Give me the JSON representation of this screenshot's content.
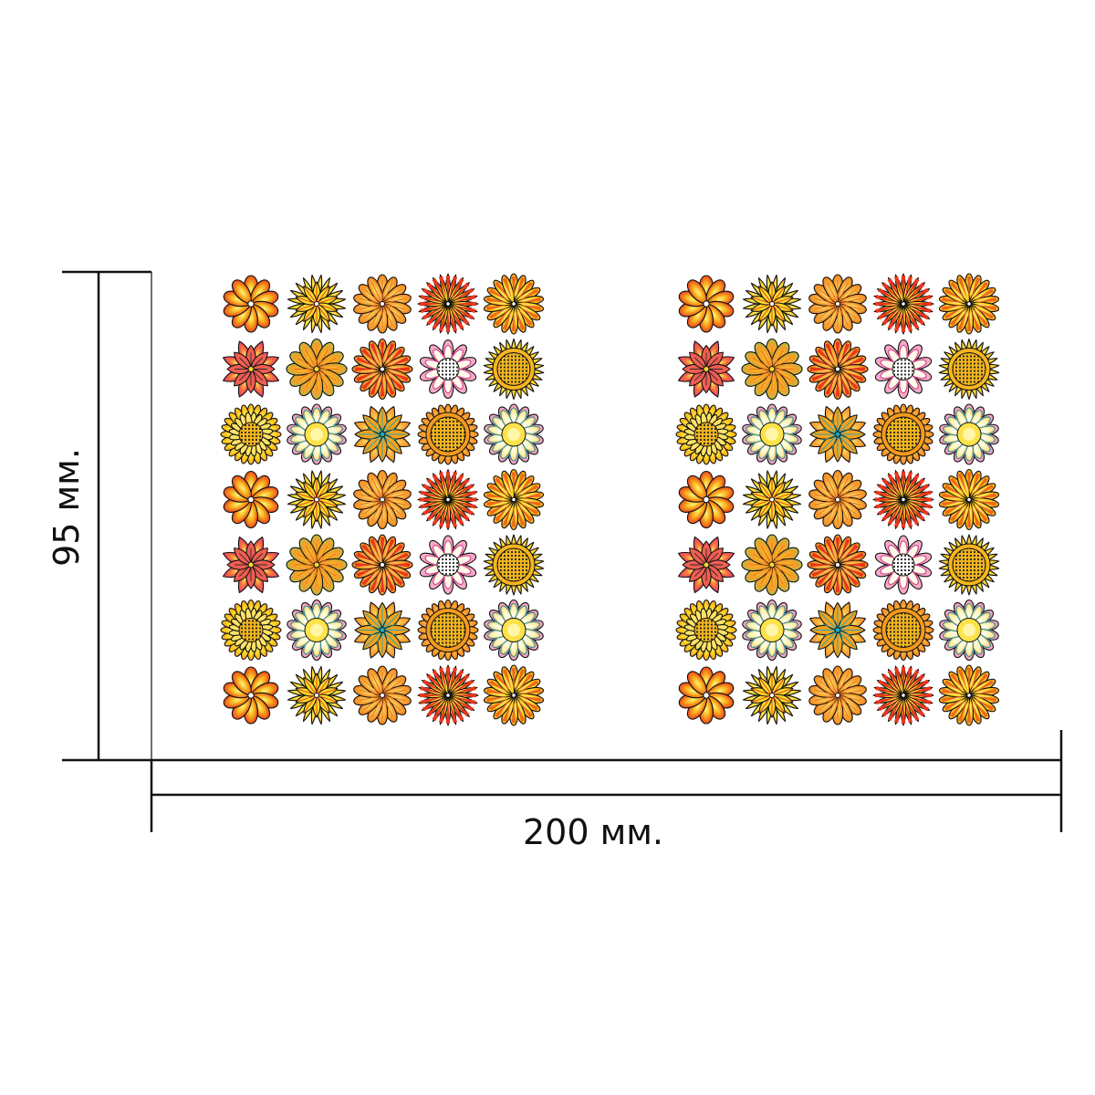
{
  "dimensions": {
    "width_label": "200 мм.",
    "height_label": "95 мм."
  },
  "sticker_sheet": {
    "panels": 2,
    "rows": 7,
    "columns": 5,
    "motif": "flower-stickers",
    "flower_styles": [
      [
        "red-orange-round",
        "yellow-pointed-star",
        "orange-round-petals",
        "red-striped-spiky",
        "orange-striped-petals"
      ],
      [
        "pink-red-pointed",
        "green-orange-swirl",
        "red-orange-striped",
        "white-pink-dotted-center",
        "orange-sunflower"
      ],
      [
        "yellow-sunflower",
        "pale-yellow-daisy",
        "orange-teal-star",
        "orange-dotted-sunflower",
        "pale-yellow-daisy"
      ],
      [
        "red-orange-round",
        "yellow-pointed-star",
        "orange-round-petals",
        "red-striped-spiky",
        "orange-striped-petals"
      ],
      [
        "pink-red-pointed",
        "green-orange-swirl",
        "red-orange-striped",
        "white-pink-dotted-center",
        "orange-sunflower"
      ],
      [
        "yellow-sunflower",
        "pale-yellow-daisy",
        "orange-teal-star",
        "orange-dotted-sunflower",
        "pale-yellow-daisy"
      ],
      [
        "red-orange-round",
        "yellow-pointed-star",
        "orange-round-petals",
        "red-striped-spiky",
        "orange-striped-petals"
      ]
    ]
  },
  "colors": {
    "line": "#111111",
    "red": "#e8381c",
    "orange": "#f39a1c",
    "yellow": "#fbd92a",
    "pink": "#ea3d7c",
    "green": "#a9c84a",
    "teal": "#1fa6b4",
    "pale": "#fff4b8",
    "white": "#ffffff"
  }
}
